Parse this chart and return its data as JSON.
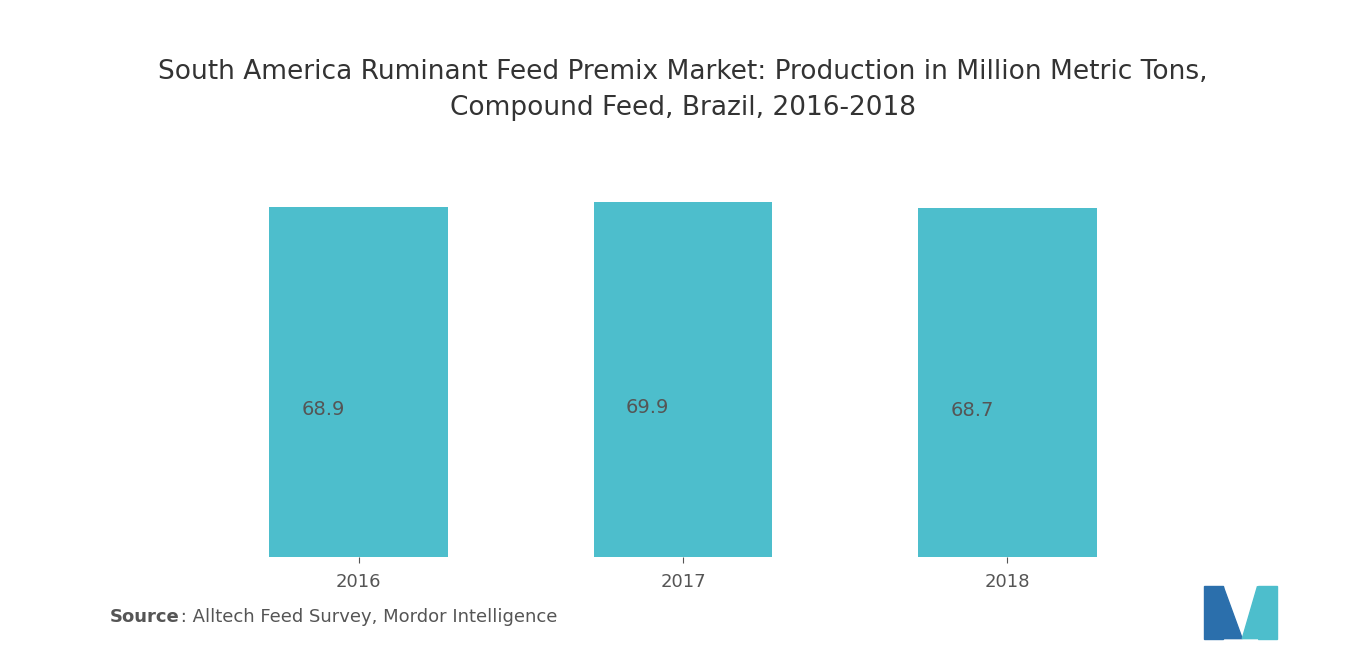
{
  "title": "South America Ruminant Feed Premix Market: Production in Million Metric Tons,\nCompound Feed, Brazil, 2016-2018",
  "categories": [
    "2016",
    "2017",
    "2018"
  ],
  "values": [
    68.9,
    69.9,
    68.7
  ],
  "bar_color": "#4DBECC",
  "label_color": "#555555",
  "title_color": "#333333",
  "background_color": "#ffffff",
  "source_bold_text": "Source",
  "source_rest_text": " : Alltech Feed Survey, Mordor Intelligence",
  "ylim": [
    0,
    80
  ],
  "bar_width": 0.55,
  "title_fontsize": 19,
  "tick_fontsize": 13,
  "value_fontsize": 14,
  "source_fontsize": 13,
  "logo_dark_blue": "#2B6FAC",
  "logo_teal": "#4DBECC"
}
